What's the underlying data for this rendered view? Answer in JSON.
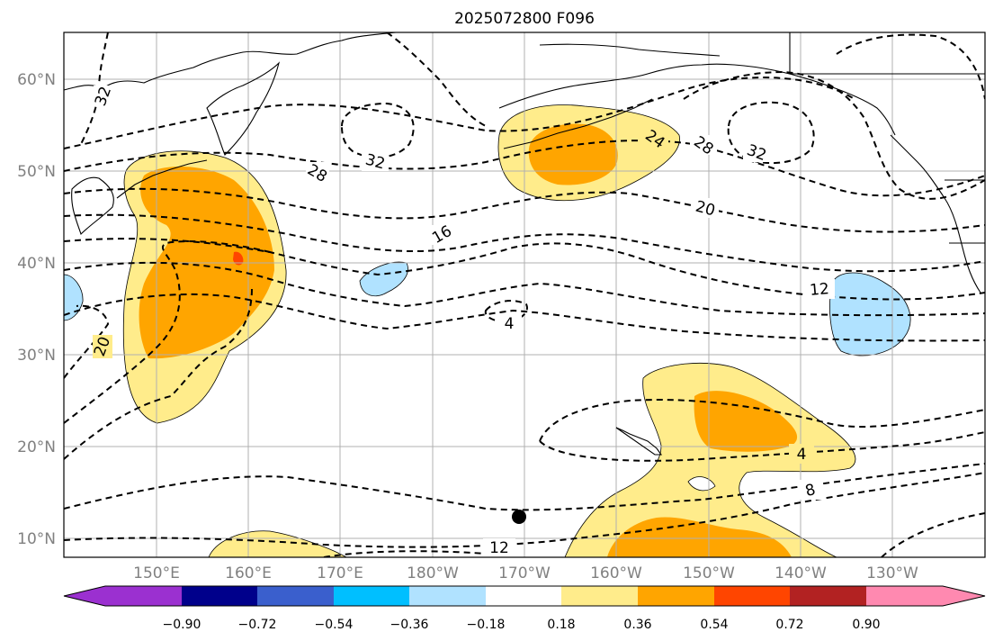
{
  "title": "2025072800 F096",
  "latitudes": [
    "60°N",
    "50°N",
    "40°N",
    "30°N",
    "20°N",
    "10°N"
  ],
  "longitudes": [
    "150°E",
    "160°E",
    "170°E",
    "180°W",
    "170°W",
    "160°W",
    "150°W",
    "140°W",
    "130°W"
  ],
  "contour_labels": [
    "32",
    "28",
    "32",
    "16",
    "24",
    "28",
    "32",
    "20",
    "12",
    "4",
    "20",
    "4",
    "8",
    "12"
  ],
  "colorbar": {
    "ticks": [
      "−0.90",
      "−0.72",
      "−0.54",
      "−0.36",
      "−0.18",
      "0.18",
      "0.36",
      "0.54",
      "0.72",
      "0.90"
    ],
    "colors": [
      "#9b30d0",
      "#00008b",
      "#3a5fcd",
      "#00bfff",
      "#b0e2ff",
      "#ffffff",
      "#ffec8b",
      "#ffa500",
      "#ff4500",
      "#b22222",
      "#ff89b0"
    ]
  },
  "colors": {
    "positive_light": "#ffec8b",
    "positive_mid": "#ffa500",
    "positive_high": "#ff4500",
    "negative_light": "#b0e2ff"
  }
}
